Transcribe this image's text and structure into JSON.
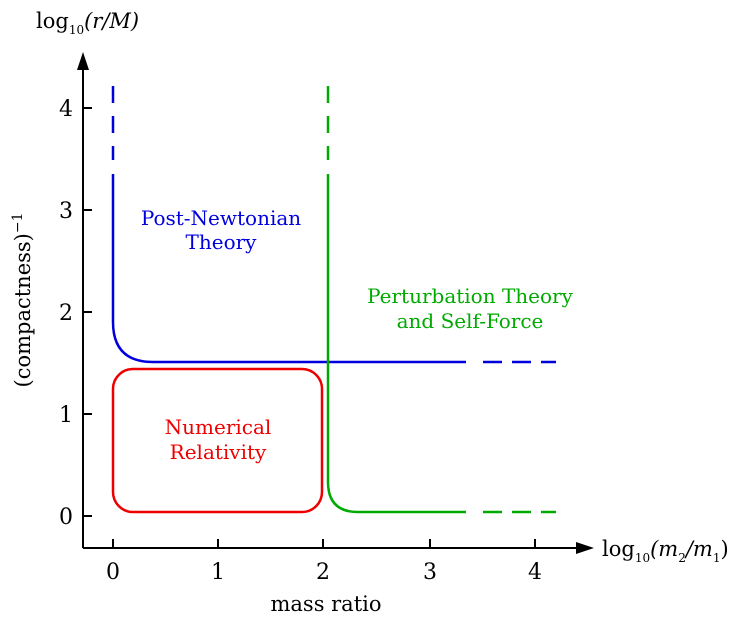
{
  "y_axis": {
    "title_parts": {
      "log": "log",
      "sub": "10",
      "expr": "(r/M)"
    },
    "side_label": "(compactness)",
    "side_label_sup": "−1",
    "ticks": [
      "0",
      "1",
      "2",
      "3",
      "4"
    ]
  },
  "x_axis": {
    "title_parts": {
      "log": "log",
      "sub": "10",
      "open": "(m",
      "s1": "2",
      "mid": "/m",
      "s2": "1",
      "close": ")"
    },
    "bottom_label": "mass ratio",
    "ticks": [
      "0",
      "1",
      "2",
      "3",
      "4"
    ]
  },
  "regions": {
    "pn_line1": "Post-Newtonian",
    "pn_line2": "Theory",
    "pt_line1": "Perturbation Theory",
    "pt_line2": "and Self-Force",
    "nr_line1": "Numerical",
    "nr_line2": "Relativity"
  },
  "colors": {
    "post_newtonian": "#0000dd",
    "perturbation": "#00aa00",
    "numerical": "#ee0000",
    "axis": "#000000"
  }
}
